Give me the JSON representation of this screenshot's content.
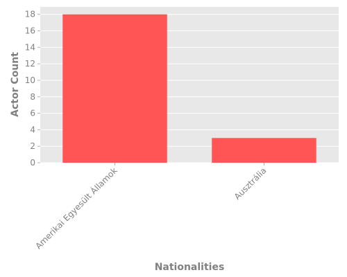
{
  "chart_data": {
    "type": "bar",
    "title": "",
    "xlabel": "Nationalities",
    "ylabel": "Actor Count",
    "categories": [
      "Amerikai Egyesült Államok",
      "Ausztrália"
    ],
    "values": [
      18,
      3
    ],
    "ylim": [
      0,
      18.9
    ],
    "yticks": [
      0,
      2,
      4,
      6,
      8,
      10,
      12,
      14,
      16,
      18
    ],
    "grid": true,
    "bar_color": "#ff5555",
    "background_color": "#e8e8e8",
    "grid_color": "#ffffff",
    "text_color": "#808080"
  }
}
